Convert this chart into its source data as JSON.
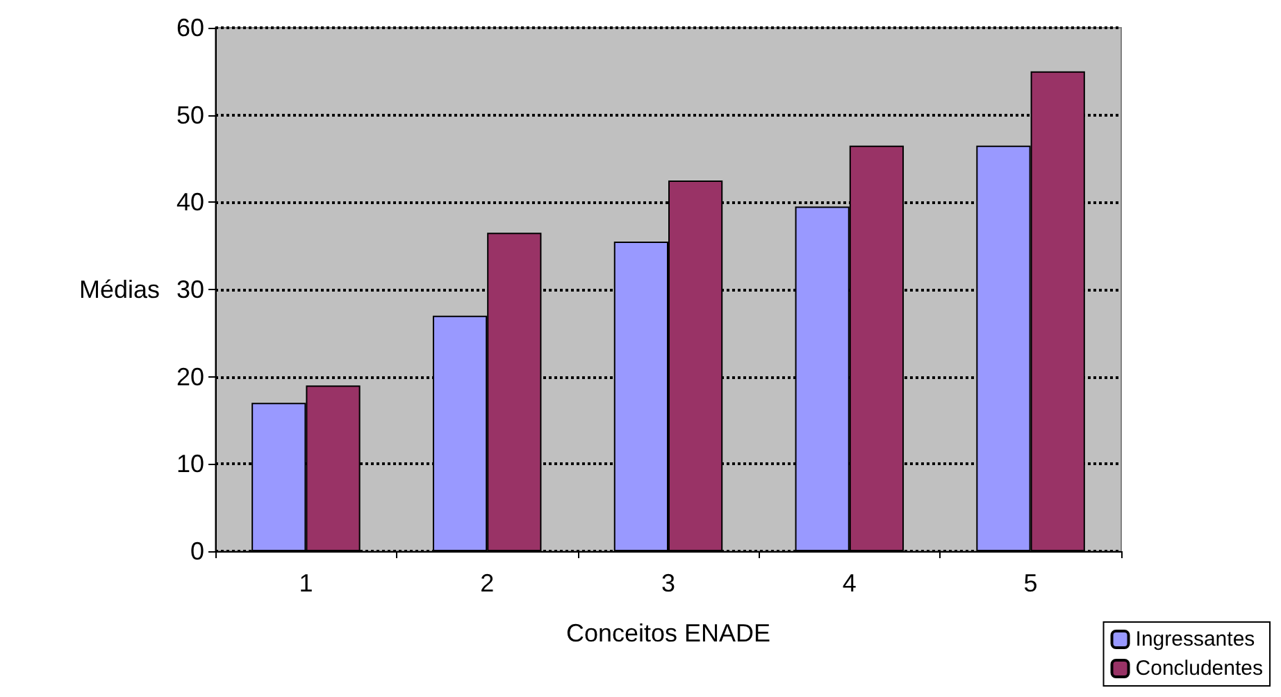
{
  "chart_data": {
    "type": "bar",
    "xlabel": "Conceitos ENADE",
    "ylabel": "Médias",
    "categories": [
      "1",
      "2",
      "3",
      "4",
      "5"
    ],
    "series": [
      {
        "name": "Ingressantes",
        "color": "#9999ff",
        "values": [
          17,
          27,
          35.5,
          39.5,
          46.5
        ]
      },
      {
        "name": "Concludentes",
        "color": "#993366",
        "values": [
          19,
          36.5,
          42.5,
          46.5,
          55
        ]
      }
    ],
    "ylim": [
      0,
      60
    ],
    "yticks": [
      0,
      10,
      20,
      30,
      40,
      50,
      60
    ],
    "grid": "y",
    "line_style": "dotted",
    "legend": "bottom right"
  }
}
